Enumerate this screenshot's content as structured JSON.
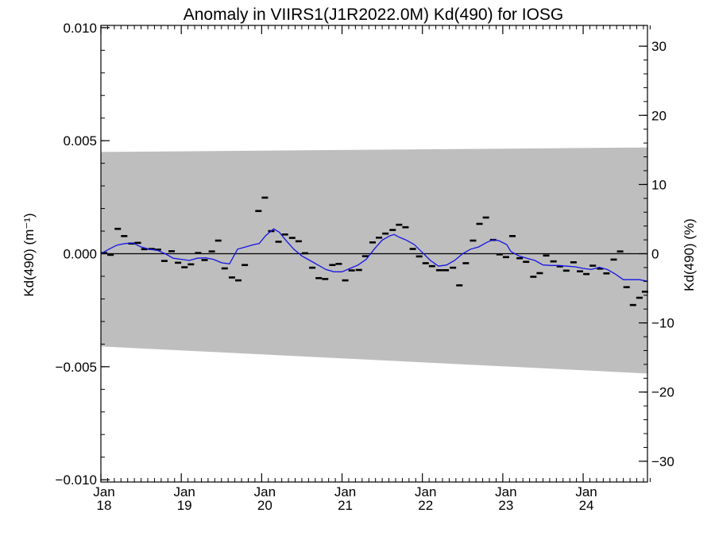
{
  "chart_data": {
    "type": "line",
    "title": "Anomaly in VIIRS1(J1R2022.0M) Kd(490) for IOSG",
    "ylabel_left": "Kd(490) (m⁻¹)",
    "ylabel_right": "Kd(490) (%)",
    "ylim_left": [
      -0.0101,
      0.0101
    ],
    "ylim_right": [
      -33,
      33
    ],
    "left_ticks": [
      {
        "value": 0.01,
        "label": "0.010"
      },
      {
        "value": 0.005,
        "label": "0.005"
      },
      {
        "value": 0.0,
        "label": "0.000"
      },
      {
        "value": -0.005,
        "label": "−0.005"
      },
      {
        "value": -0.01,
        "label": "−0.010"
      }
    ],
    "right_ticks": [
      {
        "value": 30,
        "label": "30"
      },
      {
        "value": 20,
        "label": "20"
      },
      {
        "value": 10,
        "label": "10"
      },
      {
        "value": 0,
        "label": "0"
      },
      {
        "value": -10,
        "label": "−10"
      },
      {
        "value": -20,
        "label": "−20"
      },
      {
        "value": -30,
        "label": "−30"
      }
    ],
    "xlim": [
      2018.0,
      2024.8
    ],
    "x_ticks": [
      {
        "x": 2018.0,
        "month": "Jan",
        "year": "18"
      },
      {
        "x": 2019.0,
        "month": "Jan",
        "year": "19"
      },
      {
        "x": 2020.0,
        "month": "Jan",
        "year": "20"
      },
      {
        "x": 2021.0,
        "month": "Jan",
        "year": "21"
      },
      {
        "x": 2022.0,
        "month": "Jan",
        "year": "22"
      },
      {
        "x": 2023.0,
        "month": "Jan",
        "year": "23"
      },
      {
        "x": 2024.0,
        "month": "Jan",
        "year": "24"
      }
    ],
    "envelope": {
      "upper": [
        [
          2018.0,
          0.0045
        ],
        [
          2024.8,
          0.0047
        ]
      ],
      "lower": [
        [
          2018.0,
          -0.0041
        ],
        [
          2024.8,
          -0.0053
        ]
      ],
      "color": "#bebebe"
    },
    "zero_line": 0.0,
    "series": [
      {
        "kind": "monthly_points",
        "color": "#000000",
        "points": [
          [
            2018.04,
            3e-05
          ],
          [
            2018.12,
            -5e-05
          ],
          [
            2018.21,
            0.0011
          ],
          [
            2018.29,
            0.00078
          ],
          [
            2018.38,
            0.00045
          ],
          [
            2018.46,
            0.00048
          ],
          [
            2018.54,
            0.0002
          ],
          [
            2018.63,
            0.00021
          ],
          [
            2018.71,
            0.00018
          ],
          [
            2018.79,
            -0.00032
          ],
          [
            2018.88,
            0.00011
          ],
          [
            2018.96,
            -0.0004
          ],
          [
            2019.04,
            -0.0006
          ],
          [
            2019.12,
            -0.00047
          ],
          [
            2019.21,
            3e-05
          ],
          [
            2019.29,
            -0.00028
          ],
          [
            2019.38,
            0.0001
          ],
          [
            2019.46,
            0.00058
          ],
          [
            2019.54,
            -0.00065
          ],
          [
            2019.63,
            -0.00105
          ],
          [
            2019.71,
            -0.00118
          ],
          [
            2019.79,
            -0.0005
          ],
          [
            2019.96,
            0.00189
          ],
          [
            2020.04,
            0.00248
          ],
          [
            2020.12,
            0.001
          ],
          [
            2020.21,
            0.00053
          ],
          [
            2020.29,
            0.00085
          ],
          [
            2020.38,
            0.0007
          ],
          [
            2020.46,
            0.00055
          ],
          [
            2020.54,
            2e-05
          ],
          [
            2020.63,
            -0.00062
          ],
          [
            2020.71,
            -0.00108
          ],
          [
            2020.79,
            -0.00112
          ],
          [
            2020.88,
            -0.0005
          ],
          [
            2020.96,
            -0.00045
          ],
          [
            2021.04,
            -0.00118
          ],
          [
            2021.12,
            -0.00074
          ],
          [
            2021.21,
            -0.00072
          ],
          [
            2021.29,
            -0.00011
          ],
          [
            2021.38,
            0.0005
          ],
          [
            2021.46,
            0.00071
          ],
          [
            2021.54,
            0.00089
          ],
          [
            2021.63,
            0.00105
          ],
          [
            2021.71,
            0.00128
          ],
          [
            2021.79,
            0.00117
          ],
          [
            2021.88,
            0.00021
          ],
          [
            2021.96,
            -0.00012
          ],
          [
            2022.04,
            -0.00042
          ],
          [
            2022.12,
            -0.00055
          ],
          [
            2022.21,
            -0.00073
          ],
          [
            2022.29,
            -0.00073
          ],
          [
            2022.38,
            -0.00062
          ],
          [
            2022.46,
            -0.0014
          ],
          [
            2022.54,
            -0.00042
          ],
          [
            2022.63,
            0.00058
          ],
          [
            2022.71,
            0.00132
          ],
          [
            2022.79,
            0.0016
          ],
          [
            2022.88,
            0.00061
          ],
          [
            2022.96,
            -3e-05
          ],
          [
            2023.04,
            -0.00015
          ],
          [
            2023.12,
            0.00078
          ],
          [
            2023.21,
            -0.0002
          ],
          [
            2023.29,
            -0.00036
          ],
          [
            2023.38,
            -0.00102
          ],
          [
            2023.46,
            -0.00086
          ],
          [
            2023.54,
            -8e-05
          ],
          [
            2023.63,
            -0.00034
          ],
          [
            2023.71,
            -0.00056
          ],
          [
            2023.79,
            -0.00075
          ],
          [
            2023.88,
            -0.00038
          ],
          [
            2023.96,
            -0.00078
          ],
          [
            2024.04,
            -0.0009
          ],
          [
            2024.12,
            -0.00053
          ],
          [
            2024.21,
            -0.00066
          ],
          [
            2024.29,
            -0.00087
          ],
          [
            2024.38,
            -0.00026
          ],
          [
            2024.46,
            0.0001
          ],
          [
            2024.54,
            -0.00148
          ],
          [
            2024.62,
            -0.00227
          ],
          [
            2024.7,
            -0.00195
          ],
          [
            2024.77,
            -0.00168
          ]
        ]
      },
      {
        "kind": "smoothed_line",
        "color": "#1414e6",
        "points": [
          [
            2018.0,
            0.0
          ],
          [
            2018.1,
            0.0002
          ],
          [
            2018.2,
            0.00038
          ],
          [
            2018.3,
            0.00045
          ],
          [
            2018.4,
            0.00047
          ],
          [
            2018.5,
            0.0003
          ],
          [
            2018.6,
            0.0002
          ],
          [
            2018.7,
            0.00015
          ],
          [
            2018.8,
            0.0
          ],
          [
            2018.9,
            -0.0002
          ],
          [
            2019.0,
            -0.00025
          ],
          [
            2019.1,
            -0.0003
          ],
          [
            2019.2,
            -0.0002
          ],
          [
            2019.3,
            -0.00018
          ],
          [
            2019.4,
            -0.00025
          ],
          [
            2019.5,
            -0.0004
          ],
          [
            2019.6,
            -0.00045
          ],
          [
            2019.7,
            0.0002
          ],
          [
            2019.8,
            0.0003
          ],
          [
            2019.9,
            0.0004
          ],
          [
            2019.97,
            0.00045
          ],
          [
            2020.05,
            0.0008
          ],
          [
            2020.15,
            0.0011
          ],
          [
            2020.22,
            0.00095
          ],
          [
            2020.3,
            0.0006
          ],
          [
            2020.4,
            0.0002
          ],
          [
            2020.5,
            -0.0001
          ],
          [
            2020.6,
            -0.0003
          ],
          [
            2020.7,
            -0.0005
          ],
          [
            2020.8,
            -0.0007
          ],
          [
            2020.9,
            -0.0008
          ],
          [
            2021.0,
            -0.0008
          ],
          [
            2021.1,
            -0.00065
          ],
          [
            2021.2,
            -0.0005
          ],
          [
            2021.3,
            -0.00025
          ],
          [
            2021.4,
            0.0002
          ],
          [
            2021.5,
            0.0006
          ],
          [
            2021.6,
            0.0008
          ],
          [
            2021.65,
            0.00085
          ],
          [
            2021.7,
            0.00075
          ],
          [
            2021.8,
            0.0006
          ],
          [
            2021.9,
            0.0004
          ],
          [
            2022.0,
            5e-05
          ],
          [
            2022.1,
            -0.0003
          ],
          [
            2022.2,
            -0.00055
          ],
          [
            2022.3,
            -0.0005
          ],
          [
            2022.4,
            -0.0003
          ],
          [
            2022.5,
            0.0
          ],
          [
            2022.6,
            0.0002
          ],
          [
            2022.7,
            0.0003
          ],
          [
            2022.8,
            0.0005
          ],
          [
            2022.88,
            0.00062
          ],
          [
            2022.95,
            0.00058
          ],
          [
            2023.05,
            0.0004
          ],
          [
            2023.1,
            0.0001
          ],
          [
            2023.2,
            -0.0001
          ],
          [
            2023.3,
            -0.0002
          ],
          [
            2023.4,
            -0.0003
          ],
          [
            2023.5,
            -0.0005
          ],
          [
            2023.6,
            -0.00052
          ],
          [
            2023.7,
            -0.00052
          ],
          [
            2023.8,
            -0.00055
          ],
          [
            2023.9,
            -0.00058
          ],
          [
            2024.0,
            -0.00065
          ],
          [
            2024.1,
            -0.0007
          ],
          [
            2024.2,
            -0.0006
          ],
          [
            2024.3,
            -0.0007
          ],
          [
            2024.4,
            -0.0009
          ],
          [
            2024.5,
            -0.00115
          ],
          [
            2024.6,
            -0.00115
          ],
          [
            2024.7,
            -0.00115
          ],
          [
            2024.8,
            -0.00122
          ]
        ]
      }
    ],
    "grid": false,
    "legend": "none"
  }
}
